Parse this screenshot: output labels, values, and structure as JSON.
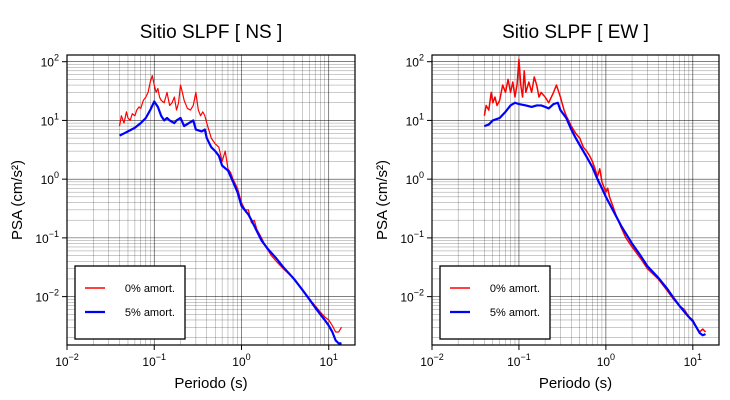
{
  "chart_data": [
    {
      "type": "line",
      "title": "Sitio SLPF [ NS ]",
      "xlabel": "Periodo (s)",
      "ylabel": "PSA (cm/s²)",
      "xscale": "log",
      "yscale": "log",
      "xlim": [
        0.01,
        20
      ],
      "ylim": [
        0.0015,
        130
      ],
      "grid": true,
      "legend_position": "bottom-left",
      "x_ticks": [
        {
          "value": 0.01,
          "base": "10",
          "exp": "−2"
        },
        {
          "value": 0.1,
          "base": "10",
          "exp": "−1"
        },
        {
          "value": 1,
          "base": "10",
          "exp": "0"
        },
        {
          "value": 10,
          "base": "10",
          "exp": "1"
        }
      ],
      "y_ticks": [
        {
          "value": 0.01,
          "base": "10",
          "exp": "−2"
        },
        {
          "value": 0.1,
          "base": "10",
          "exp": "−1"
        },
        {
          "value": 1,
          "base": "10",
          "exp": "0"
        },
        {
          "value": 10,
          "base": "10",
          "exp": "1"
        },
        {
          "value": 100,
          "base": "10",
          "exp": "2"
        }
      ],
      "series": [
        {
          "name": "0% amort.",
          "color": "#ff0000",
          "width": 1.2,
          "points": [
            [
              0.04,
              8
            ],
            [
              0.042,
              12
            ],
            [
              0.045,
              9
            ],
            [
              0.048,
              14
            ],
            [
              0.05,
              11
            ],
            [
              0.053,
              10
            ],
            [
              0.056,
              13
            ],
            [
              0.06,
              12
            ],
            [
              0.063,
              15
            ],
            [
              0.067,
              17
            ],
            [
              0.07,
              16
            ],
            [
              0.075,
              22
            ],
            [
              0.08,
              25
            ],
            [
              0.085,
              30
            ],
            [
              0.09,
              45
            ],
            [
              0.095,
              58
            ],
            [
              0.1,
              40
            ],
            [
              0.105,
              30
            ],
            [
              0.11,
              35
            ],
            [
              0.115,
              25
            ],
            [
              0.12,
              22
            ],
            [
              0.13,
              20
            ],
            [
              0.14,
              30
            ],
            [
              0.15,
              18
            ],
            [
              0.16,
              20
            ],
            [
              0.17,
              25
            ],
            [
              0.18,
              15
            ],
            [
              0.19,
              20
            ],
            [
              0.2,
              40
            ],
            [
              0.21,
              30
            ],
            [
              0.22,
              22
            ],
            [
              0.24,
              16
            ],
            [
              0.26,
              15
            ],
            [
              0.28,
              18
            ],
            [
              0.3,
              30
            ],
            [
              0.32,
              15
            ],
            [
              0.34,
              12
            ],
            [
              0.36,
              14
            ],
            [
              0.38,
              12
            ],
            [
              0.4,
              9
            ],
            [
              0.45,
              5
            ],
            [
              0.5,
              4
            ],
            [
              0.55,
              3.5
            ],
            [
              0.6,
              2
            ],
            [
              0.65,
              3
            ],
            [
              0.7,
              1.5
            ],
            [
              0.75,
              1.3
            ],
            [
              0.8,
              1.0
            ],
            [
              0.9,
              0.7
            ],
            [
              1.0,
              0.4
            ],
            [
              1.1,
              0.3
            ],
            [
              1.2,
              0.3
            ],
            [
              1.3,
              0.18
            ],
            [
              1.4,
              0.2
            ],
            [
              1.5,
              0.14
            ],
            [
              1.7,
              0.1
            ],
            [
              1.9,
              0.07
            ],
            [
              2.2,
              0.05
            ],
            [
              2.5,
              0.04
            ],
            [
              3,
              0.03
            ],
            [
              4,
              0.02
            ],
            [
              5,
              0.013
            ],
            [
              6,
              0.009
            ],
            [
              7,
              0.007
            ],
            [
              8,
              0.0055
            ],
            [
              9,
              0.0045
            ],
            [
              10,
              0.004
            ],
            [
              11,
              0.0032
            ],
            [
              12,
              0.0025
            ],
            [
              13,
              0.0025
            ],
            [
              14,
              0.003
            ]
          ]
        },
        {
          "name": "5% amort.",
          "color": "#0000ff",
          "width": 2.2,
          "points": [
            [
              0.04,
              5.5
            ],
            [
              0.045,
              6
            ],
            [
              0.05,
              6.5
            ],
            [
              0.06,
              7.5
            ],
            [
              0.07,
              9
            ],
            [
              0.08,
              11
            ],
            [
              0.09,
              15
            ],
            [
              0.1,
              21
            ],
            [
              0.11,
              17
            ],
            [
              0.12,
              12
            ],
            [
              0.13,
              10
            ],
            [
              0.14,
              11
            ],
            [
              0.15,
              10
            ],
            [
              0.17,
              9
            ],
            [
              0.18,
              10
            ],
            [
              0.2,
              11
            ],
            [
              0.22,
              8
            ],
            [
              0.25,
              9
            ],
            [
              0.28,
              10
            ],
            [
              0.3,
              7
            ],
            [
              0.35,
              6.5
            ],
            [
              0.38,
              7
            ],
            [
              0.4,
              5
            ],
            [
              0.45,
              3.5
            ],
            [
              0.5,
              3
            ],
            [
              0.55,
              2.5
            ],
            [
              0.6,
              1.7
            ],
            [
              0.7,
              1.4
            ],
            [
              0.8,
              0.9
            ],
            [
              0.9,
              0.6
            ],
            [
              1.0,
              0.35
            ],
            [
              1.2,
              0.25
            ],
            [
              1.3,
              0.2
            ],
            [
              1.5,
              0.13
            ],
            [
              1.7,
              0.09
            ],
            [
              2,
              0.065
            ],
            [
              2.5,
              0.045
            ],
            [
              3,
              0.032
            ],
            [
              4,
              0.02
            ],
            [
              5,
              0.013
            ],
            [
              6,
              0.009
            ],
            [
              7,
              0.0065
            ],
            [
              8,
              0.005
            ],
            [
              9,
              0.004
            ],
            [
              10,
              0.0032
            ],
            [
              11,
              0.0025
            ],
            [
              12,
              0.0018
            ],
            [
              13,
              0.0016
            ],
            [
              14,
              0.0016
            ]
          ]
        }
      ]
    },
    {
      "type": "line",
      "title": "Sitio SLPF [ EW ]",
      "xlabel": "Periodo (s)",
      "ylabel": "PSA (cm/s²)",
      "xscale": "log",
      "yscale": "log",
      "xlim": [
        0.01,
        20
      ],
      "ylim": [
        0.0015,
        130
      ],
      "grid": true,
      "legend_position": "bottom-left",
      "x_ticks": [
        {
          "value": 0.01,
          "base": "10",
          "exp": "−2"
        },
        {
          "value": 0.1,
          "base": "10",
          "exp": "−1"
        },
        {
          "value": 1,
          "base": "10",
          "exp": "0"
        },
        {
          "value": 10,
          "base": "10",
          "exp": "1"
        }
      ],
      "y_ticks": [
        {
          "value": 0.01,
          "base": "10",
          "exp": "−2"
        },
        {
          "value": 0.1,
          "base": "10",
          "exp": "−1"
        },
        {
          "value": 1,
          "base": "10",
          "exp": "0"
        },
        {
          "value": 10,
          "base": "10",
          "exp": "1"
        },
        {
          "value": 100,
          "base": "10",
          "exp": "2"
        }
      ],
      "series": [
        {
          "name": "0% amort.",
          "color": "#ff0000",
          "width": 1.5,
          "points": [
            [
              0.04,
              12
            ],
            [
              0.042,
              18
            ],
            [
              0.045,
              15
            ],
            [
              0.048,
              30
            ],
            [
              0.05,
              20
            ],
            [
              0.053,
              25
            ],
            [
              0.056,
              18
            ],
            [
              0.06,
              22
            ],
            [
              0.065,
              40
            ],
            [
              0.07,
              30
            ],
            [
              0.075,
              50
            ],
            [
              0.08,
              30
            ],
            [
              0.085,
              45
            ],
            [
              0.09,
              25
            ],
            [
              0.095,
              40
            ],
            [
              0.1,
              110
            ],
            [
              0.105,
              40
            ],
            [
              0.11,
              25
            ],
            [
              0.115,
              70
            ],
            [
              0.12,
              30
            ],
            [
              0.13,
              45
            ],
            [
              0.14,
              30
            ],
            [
              0.15,
              55
            ],
            [
              0.16,
              40
            ],
            [
              0.17,
              25
            ],
            [
              0.18,
              30
            ],
            [
              0.2,
              25
            ],
            [
              0.22,
              20
            ],
            [
              0.25,
              30
            ],
            [
              0.27,
              40
            ],
            [
              0.3,
              25
            ],
            [
              0.33,
              15
            ],
            [
              0.35,
              12
            ],
            [
              0.4,
              8
            ],
            [
              0.45,
              6
            ],
            [
              0.5,
              5
            ],
            [
              0.55,
              3.5
            ],
            [
              0.6,
              3
            ],
            [
              0.65,
              2.5
            ],
            [
              0.7,
              2
            ],
            [
              0.75,
              1.5
            ],
            [
              0.8,
              1.1
            ],
            [
              0.85,
              1.5
            ],
            [
              0.9,
              0.9
            ],
            [
              1.0,
              0.6
            ],
            [
              1.05,
              0.7
            ],
            [
              1.1,
              0.5
            ],
            [
              1.2,
              0.35
            ],
            [
              1.3,
              0.25
            ],
            [
              1.5,
              0.15
            ],
            [
              1.7,
              0.1
            ],
            [
              2,
              0.07
            ],
            [
              2.5,
              0.045
            ],
            [
              3,
              0.03
            ],
            [
              4,
              0.02
            ],
            [
              5,
              0.013
            ],
            [
              6,
              0.009
            ],
            [
              7,
              0.007
            ],
            [
              8,
              0.006
            ],
            [
              9,
              0.0045
            ],
            [
              10,
              0.004
            ],
            [
              11,
              0.003
            ],
            [
              12,
              0.0025
            ],
            [
              13,
              0.0028
            ],
            [
              14,
              0.0025
            ]
          ]
        },
        {
          "name": "5% amort.",
          "color": "#0000ff",
          "width": 2.2,
          "points": [
            [
              0.04,
              8
            ],
            [
              0.045,
              8.5
            ],
            [
              0.05,
              10
            ],
            [
              0.06,
              11
            ],
            [
              0.07,
              14
            ],
            [
              0.08,
              18
            ],
            [
              0.09,
              20
            ],
            [
              0.1,
              19
            ],
            [
              0.12,
              18
            ],
            [
              0.14,
              17
            ],
            [
              0.16,
              18
            ],
            [
              0.18,
              18
            ],
            [
              0.2,
              17
            ],
            [
              0.22,
              16
            ],
            [
              0.25,
              19
            ],
            [
              0.28,
              20
            ],
            [
              0.3,
              15
            ],
            [
              0.35,
              11
            ],
            [
              0.4,
              7
            ],
            [
              0.45,
              5
            ],
            [
              0.5,
              3.8
            ],
            [
              0.55,
              3
            ],
            [
              0.6,
              2.4
            ],
            [
              0.7,
              1.6
            ],
            [
              0.8,
              1.0
            ],
            [
              0.9,
              0.7
            ],
            [
              1.0,
              0.5
            ],
            [
              1.2,
              0.3
            ],
            [
              1.5,
              0.16
            ],
            [
              2,
              0.08
            ],
            [
              2.5,
              0.05
            ],
            [
              3,
              0.033
            ],
            [
              4,
              0.021
            ],
            [
              5,
              0.014
            ],
            [
              6,
              0.0095
            ],
            [
              7,
              0.007
            ],
            [
              8,
              0.0055
            ],
            [
              9,
              0.0045
            ],
            [
              10,
              0.0038
            ],
            [
              11,
              0.003
            ],
            [
              12,
              0.0024
            ],
            [
              13,
              0.0022
            ],
            [
              14,
              0.0023
            ]
          ]
        }
      ]
    }
  ]
}
